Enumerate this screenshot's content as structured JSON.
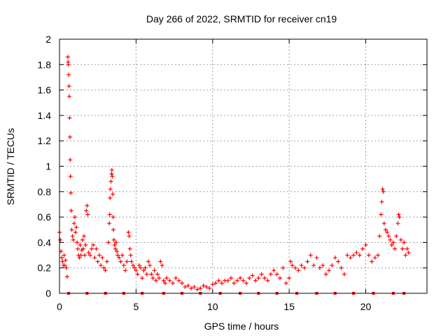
{
  "chart_data": {
    "type": "scatter",
    "title": "Day 266 of 2022, SRMTID for receiver cn19",
    "xlabel": "GPS time / hours",
    "ylabel": "SRMTID / TECUs",
    "xlim": [
      0,
      24
    ],
    "ylim": [
      0,
      2
    ],
    "xticks": [
      0,
      5,
      10,
      15,
      20
    ],
    "yticks": [
      0,
      0.2,
      0.4,
      0.6,
      0.8,
      1,
      1.2,
      1.4,
      1.6,
      1.8,
      2
    ],
    "xtick_labels": [
      "0",
      "5",
      "10",
      "15",
      "20"
    ],
    "ytick_labels": [
      "0",
      "0.2",
      "0.4",
      "0.6",
      "0.8",
      "1",
      "1.2",
      "1.4",
      "1.6",
      "1.8",
      "2"
    ],
    "grid": true,
    "marker": "+",
    "color": "#ff0000",
    "series": [
      {
        "name": "SRMTID",
        "points": [
          [
            0.0,
            0.48
          ],
          [
            0.05,
            0.42
          ],
          [
            0.1,
            0.33
          ],
          [
            0.15,
            0.28
          ],
          [
            0.2,
            0.25
          ],
          [
            0.25,
            0.22
          ],
          [
            0.3,
            0.3
          ],
          [
            0.35,
            0.22
          ],
          [
            0.4,
            0.26
          ],
          [
            0.45,
            0.2
          ],
          [
            0.5,
            0.13
          ],
          [
            0.55,
            1.86
          ],
          [
            0.56,
            1.82
          ],
          [
            0.58,
            1.8
          ],
          [
            0.6,
            1.72
          ],
          [
            0.62,
            1.63
          ],
          [
            0.64,
            1.55
          ],
          [
            0.66,
            1.38
          ],
          [
            0.68,
            1.23
          ],
          [
            0.7,
            1.05
          ],
          [
            0.72,
            0.92
          ],
          [
            0.74,
            0.79
          ],
          [
            0.76,
            0.65
          ],
          [
            0.8,
            0.5
          ],
          [
            0.85,
            0.45
          ],
          [
            0.9,
            0.42
          ],
          [
            0.95,
            0.55
          ],
          [
            1.0,
            0.6
          ],
          [
            1.05,
            0.48
          ],
          [
            1.1,
            0.52
          ],
          [
            1.15,
            0.4
          ],
          [
            1.2,
            0.35
          ],
          [
            1.25,
            0.3
          ],
          [
            1.3,
            0.28
          ],
          [
            1.35,
            0.38
          ],
          [
            1.4,
            0.3
          ],
          [
            1.45,
            0.34
          ],
          [
            1.5,
            0.42
          ],
          [
            1.55,
            0.35
          ],
          [
            1.6,
            0.45
          ],
          [
            1.65,
            0.3
          ],
          [
            1.7,
            0.38
          ],
          [
            1.75,
            0.65
          ],
          [
            1.8,
            0.69
          ],
          [
            1.85,
            0.62
          ],
          [
            1.9,
            0.32
          ],
          [
            2.0,
            0.3
          ],
          [
            2.1,
            0.35
          ],
          [
            2.2,
            0.38
          ],
          [
            2.3,
            0.28
          ],
          [
            2.4,
            0.35
          ],
          [
            2.5,
            0.25
          ],
          [
            2.6,
            0.3
          ],
          [
            2.7,
            0.22
          ],
          [
            2.8,
            0.28
          ],
          [
            2.9,
            0.2
          ],
          [
            3.0,
            0.18
          ],
          [
            3.1,
            0.25
          ],
          [
            3.2,
            0.4
          ],
          [
            3.25,
            0.55
          ],
          [
            3.28,
            0.62
          ],
          [
            3.3,
            0.75
          ],
          [
            3.33,
            0.82
          ],
          [
            3.36,
            0.88
          ],
          [
            3.4,
            0.94
          ],
          [
            3.42,
            0.97
          ],
          [
            3.45,
            0.92
          ],
          [
            3.48,
            0.78
          ],
          [
            3.5,
            0.6
          ],
          [
            3.52,
            0.5
          ],
          [
            3.55,
            0.42
          ],
          [
            3.6,
            0.38
          ],
          [
            3.65,
            0.35
          ],
          [
            3.7,
            0.4
          ],
          [
            3.75,
            0.33
          ],
          [
            3.8,
            0.3
          ],
          [
            3.9,
            0.28
          ],
          [
            4.0,
            0.25
          ],
          [
            4.1,
            0.3
          ],
          [
            4.2,
            0.22
          ],
          [
            4.3,
            0.18
          ],
          [
            4.4,
            0.25
          ],
          [
            4.5,
            0.48
          ],
          [
            4.55,
            0.45
          ],
          [
            4.6,
            0.35
          ],
          [
            4.65,
            0.3
          ],
          [
            4.7,
            0.25
          ],
          [
            4.8,
            0.22
          ],
          [
            4.9,
            0.2
          ],
          [
            5.0,
            0.18
          ],
          [
            5.1,
            0.15
          ],
          [
            5.2,
            0.22
          ],
          [
            5.3,
            0.2
          ],
          [
            5.4,
            0.12
          ],
          [
            5.5,
            0.18
          ],
          [
            5.6,
            0.2
          ],
          [
            5.7,
            0.15
          ],
          [
            5.8,
            0.25
          ],
          [
            5.9,
            0.22
          ],
          [
            6.0,
            0.15
          ],
          [
            6.1,
            0.12
          ],
          [
            6.2,
            0.18
          ],
          [
            6.3,
            0.1
          ],
          [
            6.4,
            0.15
          ],
          [
            6.5,
            0.12
          ],
          [
            6.6,
            0.25
          ],
          [
            6.7,
            0.22
          ],
          [
            6.8,
            0.1
          ],
          [
            6.9,
            0.08
          ],
          [
            7.0,
            0.12
          ],
          [
            7.2,
            0.1
          ],
          [
            7.4,
            0.08
          ],
          [
            7.6,
            0.12
          ],
          [
            7.8,
            0.1
          ],
          [
            8.0,
            0.08
          ],
          [
            8.2,
            0.05
          ],
          [
            8.4,
            0.06
          ],
          [
            8.6,
            0.04
          ],
          [
            8.8,
            0.05
          ],
          [
            9.0,
            0.03
          ],
          [
            9.2,
            0.04
          ],
          [
            9.4,
            0.06
          ],
          [
            9.6,
            0.05
          ],
          [
            9.8,
            0.04
          ],
          [
            10.0,
            0.07
          ],
          [
            10.2,
            0.08
          ],
          [
            10.4,
            0.1
          ],
          [
            10.6,
            0.08
          ],
          [
            10.8,
            0.1
          ],
          [
            11.0,
            0.1
          ],
          [
            11.2,
            0.12
          ],
          [
            11.4,
            0.08
          ],
          [
            11.6,
            0.1
          ],
          [
            11.8,
            0.12
          ],
          [
            12.0,
            0.1
          ],
          [
            12.2,
            0.08
          ],
          [
            12.4,
            0.12
          ],
          [
            12.6,
            0.14
          ],
          [
            12.8,
            0.1
          ],
          [
            13.0,
            0.12
          ],
          [
            13.2,
            0.15
          ],
          [
            13.4,
            0.12
          ],
          [
            13.6,
            0.1
          ],
          [
            13.8,
            0.15
          ],
          [
            14.0,
            0.18
          ],
          [
            14.2,
            0.15
          ],
          [
            14.4,
            0.12
          ],
          [
            14.6,
            0.2
          ],
          [
            14.8,
            0.08
          ],
          [
            15.0,
            0.12
          ],
          [
            15.1,
            0.25
          ],
          [
            15.2,
            0.22
          ],
          [
            15.4,
            0.2
          ],
          [
            15.6,
            0.18
          ],
          [
            15.8,
            0.22
          ],
          [
            16.0,
            0.2
          ],
          [
            16.2,
            0.25
          ],
          [
            16.4,
            0.3
          ],
          [
            16.6,
            0.22
          ],
          [
            16.8,
            0.28
          ],
          [
            17.0,
            0.2
          ],
          [
            17.2,
            0.22
          ],
          [
            17.4,
            0.15
          ],
          [
            17.6,
            0.18
          ],
          [
            17.8,
            0.22
          ],
          [
            18.0,
            0.28
          ],
          [
            18.2,
            0.25
          ],
          [
            18.4,
            0.2
          ],
          [
            18.6,
            0.15
          ],
          [
            18.8,
            0.3
          ],
          [
            19.0,
            0.28
          ],
          [
            19.2,
            0.3
          ],
          [
            19.4,
            0.32
          ],
          [
            19.6,
            0.3
          ],
          [
            19.8,
            0.35
          ],
          [
            20.0,
            0.38
          ],
          [
            20.2,
            0.3
          ],
          [
            20.4,
            0.25
          ],
          [
            20.6,
            0.28
          ],
          [
            20.8,
            0.3
          ],
          [
            20.9,
            0.45
          ],
          [
            21.0,
            0.62
          ],
          [
            21.05,
            0.72
          ],
          [
            21.1,
            0.82
          ],
          [
            21.15,
            0.8
          ],
          [
            21.2,
            0.55
          ],
          [
            21.3,
            0.5
          ],
          [
            21.4,
            0.48
          ],
          [
            21.5,
            0.45
          ],
          [
            21.6,
            0.42
          ],
          [
            21.7,
            0.38
          ],
          [
            21.8,
            0.4
          ],
          [
            21.9,
            0.35
          ],
          [
            22.0,
            0.45
          ],
          [
            22.1,
            0.55
          ],
          [
            22.15,
            0.62
          ],
          [
            22.2,
            0.6
          ],
          [
            22.3,
            0.42
          ],
          [
            22.4,
            0.35
          ],
          [
            22.5,
            0.4
          ],
          [
            22.6,
            0.3
          ],
          [
            22.7,
            0.35
          ],
          [
            22.8,
            0.32
          ]
        ]
      }
    ],
    "gap_markers_x": [
      0.6,
      1.8,
      3.0,
      4.2,
      5.4,
      6.8,
      8.0,
      9.2,
      10.5,
      11.8,
      13.0,
      14.2,
      15.5,
      16.8,
      18.0,
      19.2,
      20.5,
      21.8,
      22.5
    ]
  }
}
